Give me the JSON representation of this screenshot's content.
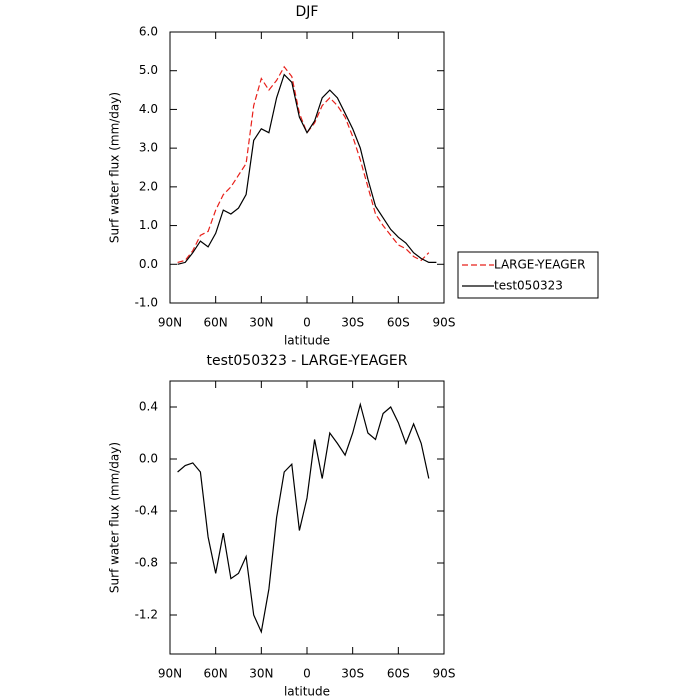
{
  "chart_data": [
    {
      "type": "line",
      "title": "DJF",
      "xlabel": "latitude",
      "ylabel": "Surf water flux (mm/day)",
      "x": [
        85,
        80,
        75,
        70,
        65,
        60,
        55,
        50,
        45,
        40,
        35,
        30,
        25,
        20,
        15,
        10,
        5,
        0,
        -5,
        -10,
        -15,
        -20,
        -25,
        -30,
        -35,
        -40,
        -45,
        -50,
        -55,
        -60,
        -65,
        -70,
        -75,
        -80,
        -85
      ],
      "series": [
        {
          "name": "LARGE-YEAGER",
          "color": "#e8201a",
          "dash": true,
          "values": [
            0.05,
            0.1,
            0.35,
            0.75,
            0.85,
            1.4,
            1.8,
            2.0,
            2.3,
            2.6,
            4.1,
            4.8,
            4.5,
            4.75,
            5.1,
            4.85,
            3.9,
            3.4,
            3.65,
            4.1,
            4.3,
            4.1,
            3.8,
            3.3,
            2.7,
            2.0,
            1.3,
            1.0,
            0.75,
            0.5,
            0.4,
            0.2,
            0.1,
            0.3,
            null
          ]
        },
        {
          "name": "test050323",
          "color": "#000000",
          "dash": false,
          "values": [
            0.0,
            0.05,
            0.3,
            0.6,
            0.45,
            0.8,
            1.4,
            1.3,
            1.45,
            1.8,
            3.2,
            3.5,
            3.4,
            4.3,
            4.9,
            4.7,
            3.8,
            3.4,
            3.7,
            4.3,
            4.5,
            4.3,
            3.9,
            3.5,
            3.0,
            2.2,
            1.5,
            1.2,
            0.9,
            0.7,
            0.55,
            0.3,
            0.15,
            0.05,
            0.05
          ]
        }
      ],
      "xlim": [
        90,
        -90
      ],
      "xticks": [
        {
          "value": 90,
          "label": "90N"
        },
        {
          "value": 60,
          "label": "60N"
        },
        {
          "value": 30,
          "label": "30N"
        },
        0,
        {
          "value": -30,
          "label": "30S"
        },
        {
          "value": -60,
          "label": "60S"
        },
        {
          "value": -90,
          "label": "90S"
        }
      ],
      "ylim": [
        -1,
        6
      ],
      "yticks": [
        {
          "value": -1,
          "label": "-1.0"
        },
        {
          "value": 0,
          "label": "0.0"
        },
        {
          "value": 1,
          "label": "1.0"
        },
        {
          "value": 2,
          "label": "2.0"
        },
        {
          "value": 3,
          "label": "3.0"
        },
        {
          "value": 4,
          "label": "4.0"
        },
        {
          "value": 5,
          "label": "5.0"
        },
        {
          "value": 6,
          "label": "6.0"
        }
      ],
      "legend": "right"
    },
    {
      "type": "line",
      "title": "test050323 - LARGE-YEAGER",
      "xlabel": "latitude",
      "ylabel": "Surf water flux (mm/day)",
      "x": [
        85,
        80,
        75,
        70,
        65,
        60,
        55,
        50,
        45,
        40,
        35,
        30,
        25,
        20,
        15,
        10,
        5,
        0,
        -5,
        -10,
        -15,
        -20,
        -25,
        -30,
        -35,
        -40,
        -45,
        -50,
        -55,
        -60,
        -65,
        -70,
        -75,
        -80,
        -85
      ],
      "series": [
        {
          "color": "#000000",
          "dash": false,
          "values": [
            -0.1,
            -0.05,
            -0.03,
            -0.1,
            -0.6,
            -0.88,
            -0.57,
            -0.92,
            -0.88,
            -0.75,
            -1.2,
            -1.33,
            -1.0,
            -0.45,
            -0.1,
            -0.04,
            -0.55,
            -0.3,
            0.15,
            -0.15,
            0.2,
            0.12,
            0.03,
            0.2,
            0.42,
            0.2,
            0.15,
            0.35,
            0.4,
            0.28,
            0.12,
            0.27,
            0.12,
            -0.15,
            null
          ]
        }
      ],
      "xlim": [
        90,
        -90
      ],
      "xticks": [
        {
          "value": 90,
          "label": "90N"
        },
        {
          "value": 60,
          "label": "60N"
        },
        {
          "value": 30,
          "label": "30N"
        },
        0,
        {
          "value": -30,
          "label": "30S"
        },
        {
          "value": -60,
          "label": "60S"
        },
        {
          "value": -90,
          "label": "90S"
        }
      ],
      "ylim": [
        -1.5,
        0.6
      ],
      "yticks": [
        -1.2,
        -0.8,
        -0.4,
        {
          "value": 0,
          "label": "0.0"
        },
        0.4
      ]
    }
  ]
}
